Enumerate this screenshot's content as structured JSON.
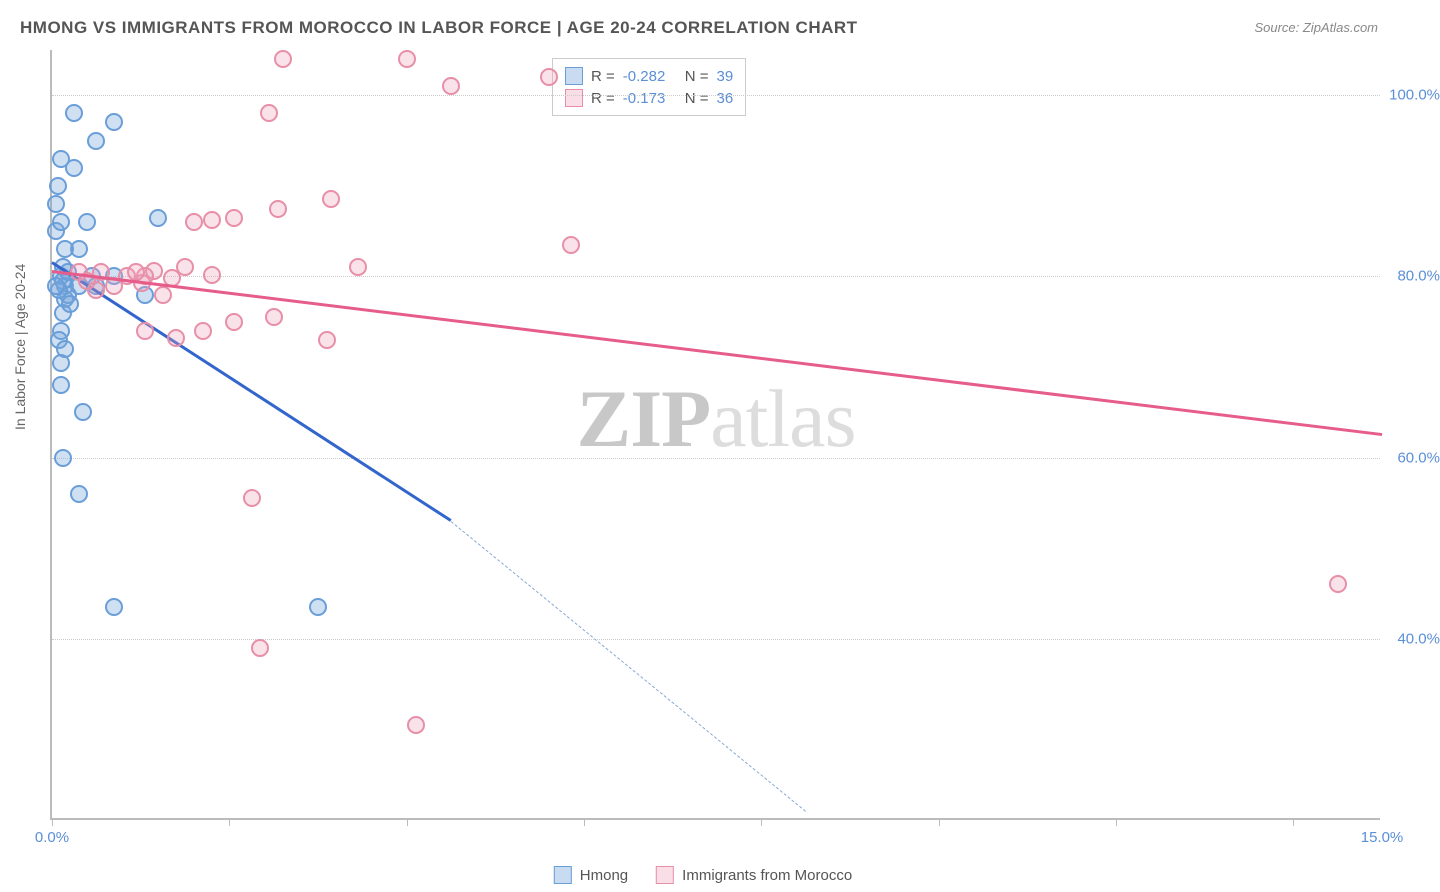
{
  "title": "HMONG VS IMMIGRANTS FROM MOROCCO IN LABOR FORCE | AGE 20-24 CORRELATION CHART",
  "source": "Source: ZipAtlas.com",
  "ylabel": "In Labor Force | Age 20-24",
  "watermark_a": "ZIP",
  "watermark_b": "atlas",
  "chart": {
    "type": "scatter",
    "xlim": [
      0,
      15
    ],
    "ylim": [
      20,
      105
    ],
    "x_ticks": [
      0,
      2,
      4,
      6,
      8,
      10,
      12,
      14
    ],
    "x_tick_labels": {
      "0": "0.0%",
      "15": "15.0%"
    },
    "y_gridlines": [
      40,
      60,
      80,
      100
    ],
    "y_tick_labels": {
      "40": "40.0%",
      "60": "60.0%",
      "80": "80.0%",
      "100": "100.0%"
    },
    "background_color": "#ffffff",
    "grid_color": "#cccccc",
    "axis_color": "#bbbbbb",
    "point_radius": 9,
    "series": [
      {
        "name": "Hmong",
        "color_fill": "rgba(120,165,220,0.35)",
        "color_stroke": "#6a9ed8",
        "trend_color": "#3366cc",
        "r": "-0.282",
        "n": "39",
        "trend": {
          "x1": 0.0,
          "y1": 81.5,
          "x2": 4.5,
          "y2": 53.0,
          "dash_x2": 8.5,
          "dash_y2": 21.0
        },
        "points": [
          [
            0.15,
            79
          ],
          [
            0.15,
            77.5
          ],
          [
            0.18,
            78
          ],
          [
            0.1,
            80
          ],
          [
            0.3,
            79
          ],
          [
            0.12,
            81
          ],
          [
            0.12,
            76
          ],
          [
            0.1,
            74
          ],
          [
            0.1,
            70.5
          ],
          [
            0.08,
            73
          ],
          [
            0.15,
            72
          ],
          [
            0.1,
            68
          ],
          [
            0.05,
            85
          ],
          [
            0.1,
            86
          ],
          [
            0.05,
            88
          ],
          [
            0.07,
            90
          ],
          [
            0.25,
            92
          ],
          [
            0.1,
            93
          ],
          [
            0.5,
            95
          ],
          [
            0.7,
            97
          ],
          [
            0.25,
            98
          ],
          [
            0.3,
            83
          ],
          [
            0.4,
            86
          ],
          [
            0.45,
            80
          ],
          [
            0.7,
            80
          ],
          [
            0.5,
            79
          ],
          [
            1.05,
            78
          ],
          [
            1.2,
            86.5
          ],
          [
            0.35,
            65
          ],
          [
            0.12,
            60
          ],
          [
            0.3,
            56
          ],
          [
            0.7,
            43.5
          ],
          [
            3.0,
            43.5
          ],
          [
            0.12,
            79.5
          ],
          [
            0.18,
            80.5
          ],
          [
            0.2,
            77
          ],
          [
            0.08,
            78.5
          ],
          [
            0.15,
            83
          ],
          [
            0.04,
            79
          ]
        ]
      },
      {
        "name": "Immigrants from Morocco",
        "color_fill": "rgba(240,160,185,0.30)",
        "color_stroke": "#e88fa8",
        "trend_color": "#e65c8a",
        "r": "-0.173",
        "n": "36",
        "trend": {
          "x1": 0.0,
          "y1": 80.5,
          "x2": 15.0,
          "y2": 62.5
        },
        "points": [
          [
            0.3,
            80.5
          ],
          [
            0.55,
            80.5
          ],
          [
            0.85,
            80
          ],
          [
            0.5,
            78.5
          ],
          [
            0.7,
            79
          ],
          [
            1.02,
            79.3
          ],
          [
            1.15,
            80.6
          ],
          [
            1.05,
            80
          ],
          [
            1.5,
            81
          ],
          [
            1.35,
            79.8
          ],
          [
            1.25,
            78
          ],
          [
            1.7,
            74
          ],
          [
            1.8,
            80.2
          ],
          [
            2.05,
            75
          ],
          [
            2.5,
            75.5
          ],
          [
            1.05,
            74
          ],
          [
            1.4,
            73.2
          ],
          [
            1.6,
            86
          ],
          [
            1.8,
            86.2
          ],
          [
            2.05,
            86.5
          ],
          [
            2.55,
            87.5
          ],
          [
            3.15,
            88.5
          ],
          [
            3.45,
            81
          ],
          [
            2.45,
            98
          ],
          [
            2.6,
            104
          ],
          [
            4.0,
            104
          ],
          [
            4.5,
            101
          ],
          [
            5.6,
            102
          ],
          [
            5.85,
            83.5
          ],
          [
            3.1,
            73
          ],
          [
            2.25,
            55.5
          ],
          [
            2.35,
            39
          ],
          [
            4.1,
            30.5
          ],
          [
            14.5,
            46
          ],
          [
            0.95,
            80.5
          ],
          [
            0.4,
            79.5
          ]
        ]
      }
    ]
  },
  "legend_top": {
    "r_label": "R =",
    "n_label": "N ="
  },
  "legend_bottom": {
    "s1": "Hmong",
    "s2": "Immigrants from Morocco"
  }
}
